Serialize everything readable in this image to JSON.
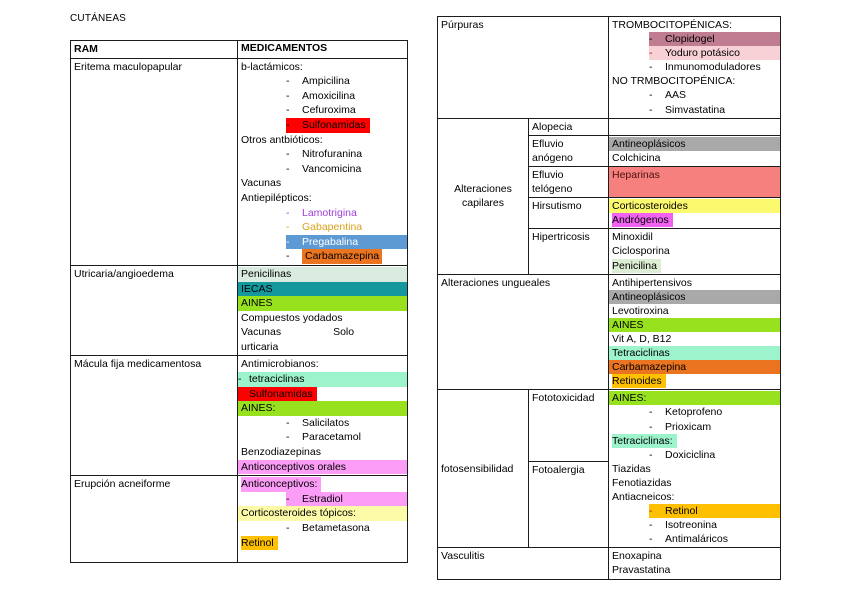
{
  "page": {
    "title": "CUTÁNEAS"
  },
  "left_table": {
    "headers": [
      "RAM",
      "MEDICAMENTOS"
    ],
    "rows": [
      {
        "ram": "Eritema maculopapular",
        "meds": [
          {
            "t": "b-lactámicos:"
          },
          {
            "t": "Ampicilina",
            "b": 1
          },
          {
            "t": "Amoxicilina",
            "b": 1
          },
          {
            "t": "Cefuroxima",
            "b": 1
          },
          {
            "t": "Sulfonamidas",
            "b": 1,
            "bg": "#fe0000",
            "sp": "text"
          },
          {
            "t": "Otros antbióticos:"
          },
          {
            "t": "Nitrofuranina",
            "b": 1
          },
          {
            "t": "Vancomicina",
            "b": 1
          },
          {
            "t": "Vacunas"
          },
          {
            "t": "Antiepilépticos:"
          },
          {
            "t": "Lamotrigina",
            "b": 1,
            "c": "#9d3fd6"
          },
          {
            "t": "Gabapentina",
            "b": 1,
            "c": "#d9a21b"
          },
          {
            "t": "Pregabalina",
            "b": 1,
            "bg": "#5d9ad3",
            "sp": "tab",
            "c": "#ffffff"
          },
          {
            "t": "Carbamazepina",
            "b": 1,
            "bg": "#ea7420",
            "sp": "word"
          }
        ]
      },
      {
        "ram": "Utricaria/angioedema",
        "meds": [
          {
            "t": "Penicilinas",
            "bg": "#d9ecdf",
            "sp": "cell"
          },
          {
            "t": "IECAS",
            "bg": "#15979e",
            "sp": "cell"
          },
          {
            "t": "AINES",
            "bg": "#98e11f",
            "sp": "cell"
          },
          {
            "t": "Compuestos yodados"
          },
          {
            "t": "Vacunas",
            "t2": "Solo"
          },
          {
            "t": "urticaria"
          }
        ]
      },
      {
        "ram": "Mácula fija medicamentosa",
        "meds": [
          {
            "t": "Antimicrobianos:"
          },
          {
            "t": "tetraciclinas",
            "b": 2,
            "bg": "#9df3cc",
            "sp": "cell"
          },
          {
            "t": "Sulfonamidas",
            "b": 2,
            "bg": "#fe0000",
            "sp": "text",
            "dc": "#c00000"
          },
          {
            "t": "AINES:",
            "bg": "#98e11f",
            "sp": "cell"
          },
          {
            "t": "Salicilatos",
            "b": 1
          },
          {
            "t": "Paracetamol",
            "b": 1
          },
          {
            "t": "Benzodiazepinas"
          },
          {
            "t": "Anticonceptivos orales",
            "bg": "#fb9cf6",
            "sp": "cell"
          }
        ]
      },
      {
        "ram": "Erupción acneiforme",
        "meds": [
          {
            "t": "Anticonceptivos:",
            "bg": "#fb9cf6",
            "sp": "text"
          },
          {
            "t": "Estradiol",
            "b": 1,
            "bg": "#fb9cf6",
            "sp": "tab"
          },
          {
            "t": "Corticosteroides tópicos:",
            "bg": "#fcfba8",
            "sp": "cell"
          },
          {
            "t": "Betametasona",
            "b": 1
          },
          {
            "t": "Retinol",
            "bg": "#fec000",
            "sp": "text"
          }
        ]
      }
    ]
  },
  "right_table": {
    "sections": [
      {
        "label": "Púrpuras",
        "meds": [
          {
            "t": "TROMBOCITOPÉNICAS:"
          },
          {
            "t": "Clopidogel",
            "b": 1,
            "bg": "#c07d92",
            "sp": "tab"
          },
          {
            "t": "Yoduro potásico",
            "b": 1,
            "bg": "#f8d1d6",
            "sp": "tab",
            "dc": "#c00000"
          },
          {
            "t": "Inmunomoduladores",
            "b": 1
          },
          {
            "t": "NO TRMBOCITOPÉNICA:"
          },
          {
            "t": "AAS",
            "b": 1
          },
          {
            "t": "Simvastatina",
            "b": 1
          }
        ]
      },
      {
        "label": "Alteraciones capilares",
        "subrows": [
          {
            "sub": "Alopecia",
            "meds": []
          },
          {
            "sub": "Efluvio anógeno",
            "meds": [
              {
                "t": "Antineoplásicos",
                "bg": "#a9a9a9",
                "sp": "cell"
              },
              {
                "t": "Colchicina"
              }
            ]
          },
          {
            "sub": "Efluvio telógeno",
            "meds": [
              {
                "t": "Heparinas",
                "bg": "#f5807d",
                "sp": "cellfill",
                "c": "#4a1010"
              }
            ]
          },
          {
            "sub": "Hirsutismo",
            "meds": [
              {
                "t": "Corticosteroides",
                "bg": "#fbf96d",
                "sp": "cell"
              },
              {
                "t": "Andrógenos",
                "bg": "#f162f1",
                "sp": "text"
              }
            ]
          },
          {
            "sub": "Hipertricosis",
            "meds": [
              {
                "t": "Minoxidil"
              },
              {
                "t": "Ciclosporina"
              },
              {
                "t": "Penicilina",
                "bg": "#ddeed4",
                "sp": "text"
              }
            ]
          }
        ]
      },
      {
        "label": "Alteraciones ungueales",
        "meds": [
          {
            "t": "Antihipertensivos"
          },
          {
            "t": "Antineoplásicos",
            "bg": "#a9a9a9",
            "sp": "cell"
          },
          {
            "t": "Levotiroxina"
          },
          {
            "t": "AINES",
            "bg": "#98e11f",
            "sp": "cell"
          },
          {
            "t": "Vit A, D, B12"
          },
          {
            "t": "Tetraciclinas",
            "bg": "#9df3cc",
            "sp": "cell"
          },
          {
            "t": "Carbamazepina",
            "bg": "#ea7420",
            "sp": "cell"
          },
          {
            "t": "Retinoides",
            "bg": "#fec000",
            "sp": "text"
          }
        ]
      },
      {
        "label": "fotosensibilidad",
        "subs": [
          "Fototoxicidad",
          "Fotoalergia"
        ],
        "meds": [
          {
            "t": "AINES:",
            "bg": "#98e11f",
            "sp": "cell"
          },
          {
            "t": "Ketoprofeno",
            "b": 1
          },
          {
            "t": "Prioxicam",
            "b": 1
          },
          {
            "t": "Tetraciclinas:",
            "bg": "#9df3cc",
            "sp": "text"
          },
          {
            "t": "Doxiciclina",
            "b": 1
          },
          {
            "t": "Tiazidas"
          },
          {
            "t": "Fenotiazidas"
          },
          {
            "t": "Antiacneicos:"
          },
          {
            "t": "Retinol",
            "b": 1,
            "bg": "#fec000",
            "sp": "tab",
            "dc": "#c00000"
          },
          {
            "t": "Isotreonina",
            "b": 1
          },
          {
            "t": "Antimaláricos",
            "b": 1
          }
        ]
      },
      {
        "label": "Vasculitis",
        "meds": [
          {
            "t": "Enoxapina"
          },
          {
            "t": "Pravastatina"
          }
        ]
      }
    ]
  }
}
